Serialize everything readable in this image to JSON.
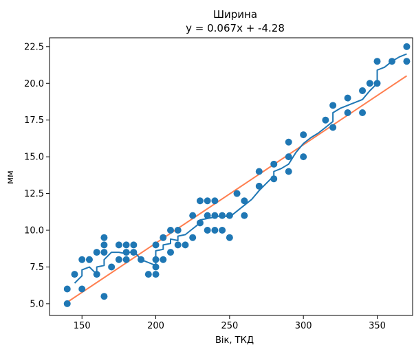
{
  "chart_data": {
    "type": "scatter",
    "title": "Ширина",
    "subtitle": "y = 0.067x + -4.28",
    "xlabel": "Вік, ТКД",
    "ylabel": "мм",
    "xlim": [
      128,
      374
    ],
    "ylim": [
      4.2,
      23.1
    ],
    "xticks": [
      150,
      200,
      250,
      300,
      350
    ],
    "yticks": [
      5.0,
      7.5,
      10.0,
      12.5,
      15.0,
      17.5,
      20.0,
      22.5
    ],
    "xtick_labels": [
      "150",
      "200",
      "250",
      "300",
      "350"
    ],
    "ytick_labels": [
      "5.0",
      "7.5",
      "10.0",
      "12.5",
      "15.0",
      "17.5",
      "20.0",
      "22.5"
    ],
    "grid": false,
    "colors": {
      "points": "#1f77b4",
      "moving_line": "#1f77b4",
      "fit_line": "#ff7f50"
    },
    "points": [
      [
        140,
        5.0
      ],
      [
        140,
        6.0
      ],
      [
        145,
        7.0
      ],
      [
        150,
        6.0
      ],
      [
        150,
        8.0
      ],
      [
        155,
        8.0
      ],
      [
        160,
        7.0
      ],
      [
        160,
        8.5
      ],
      [
        165,
        5.5
      ],
      [
        165,
        8.5
      ],
      [
        165,
        9.0
      ],
      [
        165,
        9.5
      ],
      [
        170,
        7.5
      ],
      [
        175,
        8.0
      ],
      [
        175,
        9.0
      ],
      [
        180,
        8.0
      ],
      [
        180,
        8.5
      ],
      [
        180,
        9.0
      ],
      [
        185,
        8.5
      ],
      [
        185,
        9.0
      ],
      [
        190,
        8.0
      ],
      [
        195,
        7.0
      ],
      [
        200,
        7.0
      ],
      [
        200,
        7.5
      ],
      [
        200,
        8.0
      ],
      [
        200,
        9.0
      ],
      [
        205,
        8.0
      ],
      [
        205,
        9.5
      ],
      [
        210,
        8.5
      ],
      [
        210,
        10.0
      ],
      [
        215,
        9.0
      ],
      [
        215,
        10.0
      ],
      [
        220,
        9.0
      ],
      [
        225,
        9.5
      ],
      [
        225,
        11.0
      ],
      [
        230,
        10.5
      ],
      [
        230,
        12.0
      ],
      [
        235,
        10.0
      ],
      [
        235,
        11.0
      ],
      [
        235,
        12.0
      ],
      [
        240,
        10.0
      ],
      [
        240,
        11.0
      ],
      [
        240,
        12.0
      ],
      [
        245,
        10.0
      ],
      [
        245,
        11.0
      ],
      [
        250,
        9.5
      ],
      [
        250,
        11.0
      ],
      [
        255,
        12.5
      ],
      [
        260,
        11.0
      ],
      [
        260,
        12.0
      ],
      [
        270,
        13.0
      ],
      [
        270,
        14.0
      ],
      [
        280,
        13.5
      ],
      [
        280,
        14.5
      ],
      [
        290,
        14.0
      ],
      [
        290,
        15.0
      ],
      [
        290,
        16.0
      ],
      [
        300,
        15.0
      ],
      [
        300,
        16.5
      ],
      [
        315,
        17.5
      ],
      [
        320,
        17.0
      ],
      [
        320,
        18.5
      ],
      [
        330,
        18.0
      ],
      [
        330,
        19.0
      ],
      [
        340,
        18.0
      ],
      [
        340,
        19.5
      ],
      [
        345,
        20.0
      ],
      [
        350,
        20.0
      ],
      [
        350,
        21.5
      ],
      [
        360,
        21.5
      ],
      [
        370,
        21.5
      ],
      [
        370,
        22.5
      ]
    ],
    "moving_line": [
      [
        145,
        6.4
      ],
      [
        150,
        6.9
      ],
      [
        150,
        7.3
      ],
      [
        155,
        7.5
      ],
      [
        160,
        7.0
      ],
      [
        160,
        7.5
      ],
      [
        165,
        7.6
      ],
      [
        165,
        8.0
      ],
      [
        170,
        8.5
      ],
      [
        175,
        8.5
      ],
      [
        180,
        8.4
      ],
      [
        185,
        8.6
      ],
      [
        190,
        8.0
      ],
      [
        195,
        7.8
      ],
      [
        200,
        7.6
      ],
      [
        200,
        8.6
      ],
      [
        205,
        8.7
      ],
      [
        205,
        9.0
      ],
      [
        210,
        9.1
      ],
      [
        210,
        9.4
      ],
      [
        215,
        9.3
      ],
      [
        215,
        9.6
      ],
      [
        220,
        9.7
      ],
      [
        225,
        10.1
      ],
      [
        230,
        10.5
      ],
      [
        230,
        10.7
      ],
      [
        235,
        10.8
      ],
      [
        240,
        10.9
      ],
      [
        245,
        11.0
      ],
      [
        250,
        10.9
      ],
      [
        255,
        11.3
      ],
      [
        260,
        11.7
      ],
      [
        265,
        12.1
      ],
      [
        270,
        12.7
      ],
      [
        275,
        13.2
      ],
      [
        280,
        13.7
      ],
      [
        280,
        14.0
      ],
      [
        285,
        14.2
      ],
      [
        290,
        14.5
      ],
      [
        295,
        15.3
      ],
      [
        300,
        15.9
      ],
      [
        305,
        16.3
      ],
      [
        310,
        16.6
      ],
      [
        315,
        17.0
      ],
      [
        320,
        17.4
      ],
      [
        320,
        18.0
      ],
      [
        325,
        18.3
      ],
      [
        330,
        18.5
      ],
      [
        335,
        18.7
      ],
      [
        340,
        18.9
      ],
      [
        345,
        19.5
      ],
      [
        350,
        20.0
      ],
      [
        350,
        20.9
      ],
      [
        355,
        21.1
      ],
      [
        360,
        21.5
      ],
      [
        365,
        21.8
      ],
      [
        370,
        22.0
      ]
    ],
    "fit_line": {
      "slope": 0.067,
      "intercept": -4.28,
      "x_range": [
        140,
        370
      ]
    }
  }
}
